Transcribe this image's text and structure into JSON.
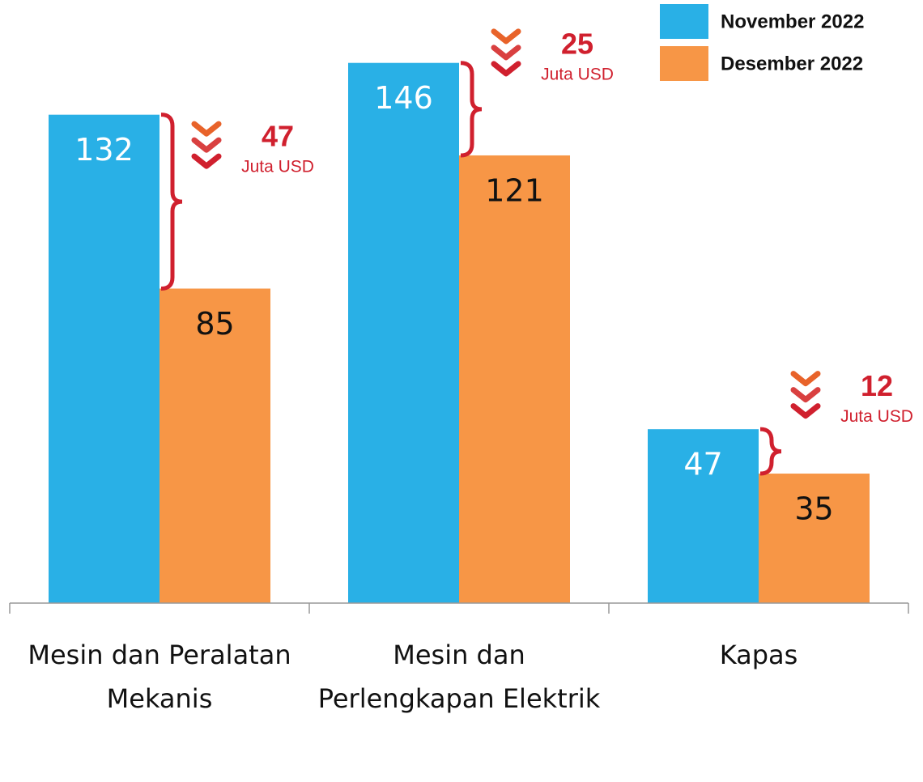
{
  "chart_data": {
    "type": "bar",
    "categories": [
      "Mesin dan Peralatan Mekanis",
      "Mesin dan Perlengkapan Elektrik",
      "Kapas"
    ],
    "series": [
      {
        "name": "November 2022",
        "color": "#29b0e6",
        "values": [
          132,
          146,
          47
        ]
      },
      {
        "name": "Desember 2022",
        "color": "#f79646",
        "values": [
          85,
          121,
          35
        ]
      }
    ],
    "ylim": [
      0,
      163
    ],
    "legend": "top-right",
    "annotations": [
      {
        "value": 47,
        "unit": "Juta USD"
      },
      {
        "value": 25,
        "unit": "Juta USD"
      },
      {
        "value": 12,
        "unit": "Juta USD"
      }
    ],
    "annotation_color": "#d0202e"
  }
}
